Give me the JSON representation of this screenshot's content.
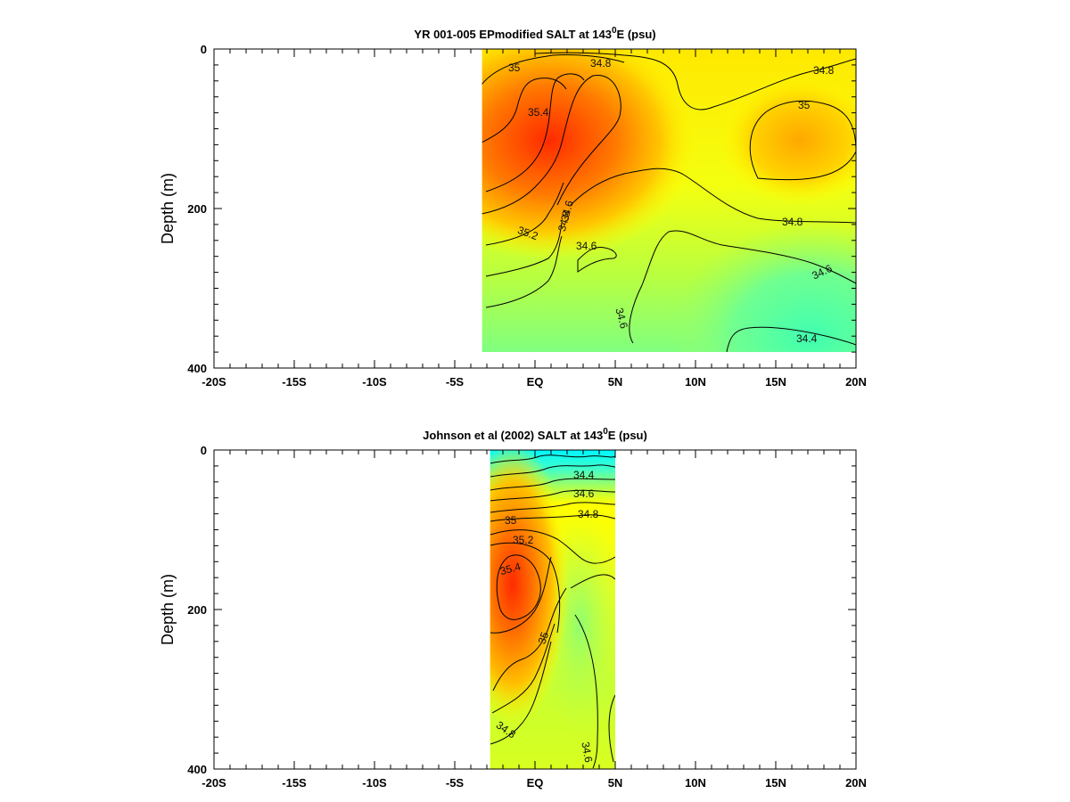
{
  "colors": {
    "low": "#40ffb0",
    "mid_low": "#80ff80",
    "mid": "#ffff00",
    "mid_high": "#ffb000",
    "high": "#ff3000",
    "very_low": "#00ffff"
  },
  "chart_data": [
    {
      "type": "heatmap",
      "title_main": "YR 001-005 EPmodified SALT at 143",
      "title_sup": "0",
      "title_end": "E (psu)",
      "ylabel": "Depth (m)",
      "xlim": [
        -20,
        20
      ],
      "ylim": [
        0,
        400
      ],
      "y_inverted": true,
      "x_tick_labels": [
        "-20S",
        "-15S",
        "-10S",
        "-5S",
        "EQ",
        "5N",
        "10N",
        "15N",
        "20N"
      ],
      "x_tick_values": [
        -20,
        -15,
        -10,
        -5,
        0,
        5,
        10,
        15,
        20
      ],
      "y_tick_labels": [
        "0",
        "200",
        "400"
      ],
      "y_tick_values": [
        0,
        200,
        400
      ],
      "data_extent": {
        "lat_min": -3.3,
        "lat_max": 20,
        "depth_min": 0,
        "depth_max": 380
      },
      "contour_labels": [
        "35",
        "34.8",
        "34.8",
        "35.4",
        "35",
        "34.8",
        "35.2",
        "34.6",
        "34.6",
        "34.6",
        "34.6",
        "34.4",
        "34.8"
      ]
    },
    {
      "type": "heatmap",
      "title_main": "Johnson et al (2002) SALT at 143",
      "title_sup": "0",
      "title_end": "E (psu)",
      "ylabel": "Depth (m)",
      "xlim": [
        -20,
        20
      ],
      "ylim": [
        0,
        400
      ],
      "y_inverted": true,
      "x_tick_labels": [
        "-20S",
        "-15S",
        "-10S",
        "-5S",
        "EQ",
        "5N",
        "10N",
        "15N",
        "20N"
      ],
      "x_tick_values": [
        -20,
        -15,
        -10,
        -5,
        0,
        5,
        10,
        15,
        20
      ],
      "y_tick_labels": [
        "0",
        "200",
        "400"
      ],
      "y_tick_values": [
        0,
        200,
        400
      ],
      "data_extent": {
        "lat_min": -2.8,
        "lat_max": 5,
        "depth_min": 0,
        "depth_max": 400
      },
      "contour_labels": [
        "34.4",
        "34.6",
        "34.8",
        "35",
        "35.2",
        "35.4",
        "35",
        "34.8",
        "34.6"
      ]
    }
  ]
}
